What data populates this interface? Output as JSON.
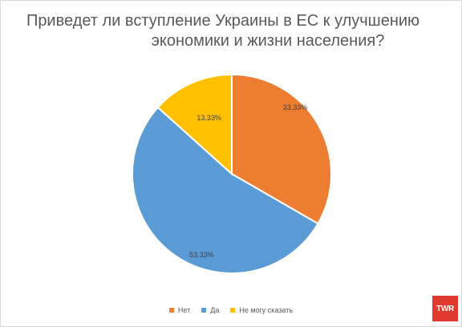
{
  "chart_data": {
    "type": "pie",
    "title_line1": "Приведет ли вступление Украины в ЕС к улучшению",
    "title_line2": "экономики и жизни населения?",
    "slices": [
      {
        "name": "Нет",
        "value": 33.33,
        "label": "33.33%",
        "color": "#ed7d31"
      },
      {
        "name": "Да",
        "value": 53.33,
        "label": "53.33%",
        "color": "#5b9bd5"
      },
      {
        "name": "Не могу сказать",
        "value": 13.33,
        "label": "13.33%",
        "color": "#ffc000"
      }
    ],
    "legend_position": "bottom"
  },
  "logo_text": "TWR"
}
